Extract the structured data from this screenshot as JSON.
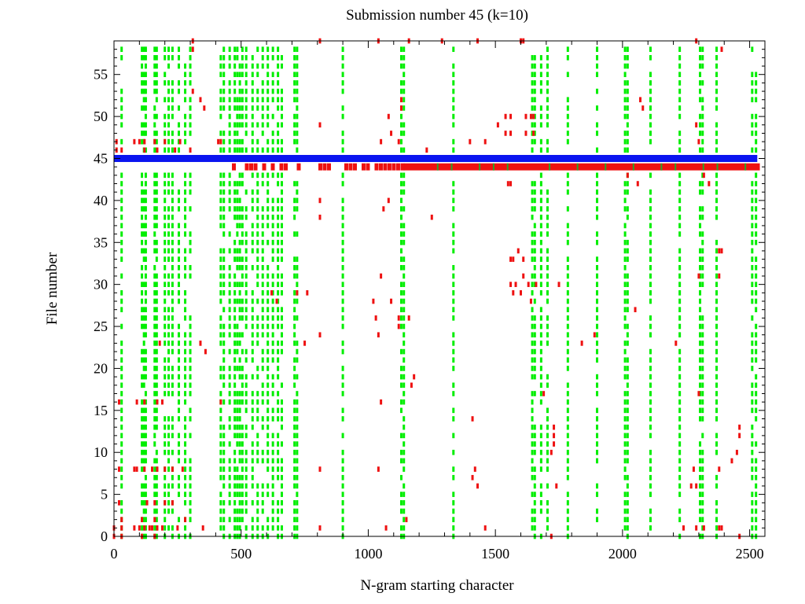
{
  "chart_data": {
    "type": "scatter",
    "title": "Submission number 45 (k=10)",
    "xlabel": "N-gram starting character",
    "ylabel": "File number",
    "xlim": [
      0,
      2560
    ],
    "ylim": [
      0,
      59
    ],
    "xticks": [
      0,
      500,
      1000,
      1500,
      2000,
      2500
    ],
    "xtick_labels": [
      "0",
      "500",
      "1000",
      "1500",
      "2000",
      "2500"
    ],
    "yticks": [
      0,
      5,
      10,
      15,
      20,
      25,
      30,
      35,
      40,
      45,
      50,
      55
    ],
    "ytick_labels": [
      "0",
      "5",
      "10",
      "15",
      "20",
      "25",
      "30",
      "35",
      "40",
      "45",
      "50",
      "55"
    ],
    "grid": false,
    "colors": {
      "green": "#00ee00",
      "red": "#ee1111",
      "blue": "#0a14f0",
      "axis": "#000000"
    },
    "submission_row": {
      "file": 45,
      "x_range": [
        0,
        2530
      ],
      "color": "blue"
    },
    "dense_red_row": {
      "file": 44,
      "x_range": [
        1140,
        2540
      ],
      "color": "red"
    },
    "green_column_x": [
      30,
      110,
      118,
      125,
      160,
      168,
      200,
      215,
      230,
      255,
      280,
      300,
      420,
      432,
      455,
      475,
      485,
      495,
      505,
      520,
      545,
      565,
      585,
      605,
      625,
      645,
      660,
      710,
      720,
      900,
      1130,
      1140,
      1335,
      1645,
      1655,
      1680,
      1705,
      1785,
      1900,
      2010,
      2020,
      2110,
      2225,
      2305,
      2315,
      2370,
      2510,
      2525
    ],
    "red_points": [
      {
        "x": 310,
        "file": 59
      },
      {
        "x": 810,
        "file": 59
      },
      {
        "x": 1040,
        "file": 59
      },
      {
        "x": 1160,
        "file": 59
      },
      {
        "x": 1290,
        "file": 59
      },
      {
        "x": 1430,
        "file": 59
      },
      {
        "x": 1600,
        "file": 59
      },
      {
        "x": 1610,
        "file": 59
      },
      {
        "x": 2290,
        "file": 59
      },
      {
        "x": 310,
        "file": 58
      },
      {
        "x": 2390,
        "file": 58
      },
      {
        "x": 1130,
        "file": 52
      },
      {
        "x": 1130,
        "file": 51
      },
      {
        "x": 2070,
        "file": 52
      },
      {
        "x": 2080,
        "file": 51
      },
      {
        "x": 310,
        "file": 53
      },
      {
        "x": 340,
        "file": 52
      },
      {
        "x": 355,
        "file": 51
      },
      {
        "x": 1080,
        "file": 50
      },
      {
        "x": 1540,
        "file": 50
      },
      {
        "x": 1560,
        "file": 50
      },
      {
        "x": 1620,
        "file": 50
      },
      {
        "x": 1640,
        "file": 50
      },
      {
        "x": 1650,
        "file": 50
      },
      {
        "x": 1510,
        "file": 49
      },
      {
        "x": 810,
        "file": 49
      },
      {
        "x": 2290,
        "file": 49
      },
      {
        "x": 1090,
        "file": 48
      },
      {
        "x": 1540,
        "file": 48
      },
      {
        "x": 1560,
        "file": 48
      },
      {
        "x": 1620,
        "file": 48
      },
      {
        "x": 1650,
        "file": 48
      },
      {
        "x": 10,
        "file": 47
      },
      {
        "x": 80,
        "file": 47
      },
      {
        "x": 100,
        "file": 47
      },
      {
        "x": 120,
        "file": 47
      },
      {
        "x": 160,
        "file": 47
      },
      {
        "x": 200,
        "file": 47
      },
      {
        "x": 260,
        "file": 47
      },
      {
        "x": 410,
        "file": 47
      },
      {
        "x": 420,
        "file": 47
      },
      {
        "x": 1050,
        "file": 47
      },
      {
        "x": 1120,
        "file": 47
      },
      {
        "x": 1400,
        "file": 47
      },
      {
        "x": 1460,
        "file": 47
      },
      {
        "x": 2300,
        "file": 47
      },
      {
        "x": 10,
        "file": 46
      },
      {
        "x": 30,
        "file": 46
      },
      {
        "x": 120,
        "file": 46
      },
      {
        "x": 170,
        "file": 46
      },
      {
        "x": 240,
        "file": 46
      },
      {
        "x": 300,
        "file": 46
      },
      {
        "x": 1230,
        "file": 46
      },
      {
        "x": 2020,
        "file": 43
      },
      {
        "x": 2060,
        "file": 42
      },
      {
        "x": 2320,
        "file": 43
      },
      {
        "x": 2340,
        "file": 42
      },
      {
        "x": 1550,
        "file": 42
      },
      {
        "x": 1560,
        "file": 42
      },
      {
        "x": 1080,
        "file": 40
      },
      {
        "x": 810,
        "file": 40
      },
      {
        "x": 810,
        "file": 38
      },
      {
        "x": 1060,
        "file": 39
      },
      {
        "x": 1250,
        "file": 38
      },
      {
        "x": 1590,
        "file": 34
      },
      {
        "x": 1560,
        "file": 33
      },
      {
        "x": 1570,
        "file": 33
      },
      {
        "x": 1610,
        "file": 33
      },
      {
        "x": 1610,
        "file": 31
      },
      {
        "x": 1560,
        "file": 30
      },
      {
        "x": 1580,
        "file": 30
      },
      {
        "x": 1630,
        "file": 30
      },
      {
        "x": 1660,
        "file": 30
      },
      {
        "x": 1750,
        "file": 30
      },
      {
        "x": 1050,
        "file": 31
      },
      {
        "x": 2300,
        "file": 31
      },
      {
        "x": 2380,
        "file": 31
      },
      {
        "x": 2380,
        "file": 34
      },
      {
        "x": 2390,
        "file": 34
      },
      {
        "x": 1570,
        "file": 29
      },
      {
        "x": 1600,
        "file": 29
      },
      {
        "x": 1640,
        "file": 28
      },
      {
        "x": 620,
        "file": 29
      },
      {
        "x": 640,
        "file": 28
      },
      {
        "x": 720,
        "file": 29
      },
      {
        "x": 760,
        "file": 29
      },
      {
        "x": 1020,
        "file": 28
      },
      {
        "x": 1090,
        "file": 28
      },
      {
        "x": 1120,
        "file": 26
      },
      {
        "x": 1030,
        "file": 26
      },
      {
        "x": 1040,
        "file": 24
      },
      {
        "x": 1120,
        "file": 25
      },
      {
        "x": 1160,
        "file": 26
      },
      {
        "x": 2050,
        "file": 27
      },
      {
        "x": 750,
        "file": 23
      },
      {
        "x": 810,
        "file": 24
      },
      {
        "x": 1840,
        "file": 23
      },
      {
        "x": 1890,
        "file": 24
      },
      {
        "x": 2210,
        "file": 23
      },
      {
        "x": 180,
        "file": 23
      },
      {
        "x": 340,
        "file": 23
      },
      {
        "x": 360,
        "file": 22
      },
      {
        "x": 1180,
        "file": 19
      },
      {
        "x": 1170,
        "file": 18
      },
      {
        "x": 1690,
        "file": 17
      },
      {
        "x": 2300,
        "file": 17
      },
      {
        "x": 20,
        "file": 16
      },
      {
        "x": 90,
        "file": 16
      },
      {
        "x": 120,
        "file": 16
      },
      {
        "x": 170,
        "file": 16
      },
      {
        "x": 190,
        "file": 16
      },
      {
        "x": 420,
        "file": 16
      },
      {
        "x": 1050,
        "file": 16
      },
      {
        "x": 1410,
        "file": 14
      },
      {
        "x": 1730,
        "file": 13
      },
      {
        "x": 1730,
        "file": 12
      },
      {
        "x": 1730,
        "file": 11
      },
      {
        "x": 2460,
        "file": 13
      },
      {
        "x": 2460,
        "file": 12
      },
      {
        "x": 2450,
        "file": 10
      },
      {
        "x": 1720,
        "file": 10
      },
      {
        "x": 2430,
        "file": 9
      },
      {
        "x": 2280,
        "file": 8
      },
      {
        "x": 2380,
        "file": 8
      },
      {
        "x": 20,
        "file": 8
      },
      {
        "x": 80,
        "file": 8
      },
      {
        "x": 90,
        "file": 8
      },
      {
        "x": 120,
        "file": 8
      },
      {
        "x": 150,
        "file": 8
      },
      {
        "x": 170,
        "file": 8
      },
      {
        "x": 200,
        "file": 8
      },
      {
        "x": 230,
        "file": 8
      },
      {
        "x": 270,
        "file": 8
      },
      {
        "x": 1040,
        "file": 8
      },
      {
        "x": 810,
        "file": 8
      },
      {
        "x": 1420,
        "file": 8
      },
      {
        "x": 1410,
        "file": 7
      },
      {
        "x": 2270,
        "file": 6
      },
      {
        "x": 2290,
        "file": 6
      },
      {
        "x": 1430,
        "file": 6
      },
      {
        "x": 1740,
        "file": 6
      },
      {
        "x": 20,
        "file": 4
      },
      {
        "x": 130,
        "file": 4
      },
      {
        "x": 160,
        "file": 4
      },
      {
        "x": 200,
        "file": 4
      },
      {
        "x": 230,
        "file": 4
      },
      {
        "x": 30,
        "file": 2
      },
      {
        "x": 110,
        "file": 2
      },
      {
        "x": 160,
        "file": 2
      },
      {
        "x": 280,
        "file": 2
      },
      {
        "x": 1150,
        "file": 2
      },
      {
        "x": 0,
        "file": 1
      },
      {
        "x": 30,
        "file": 1
      },
      {
        "x": 80,
        "file": 1
      },
      {
        "x": 100,
        "file": 1
      },
      {
        "x": 120,
        "file": 1
      },
      {
        "x": 140,
        "file": 1
      },
      {
        "x": 150,
        "file": 1
      },
      {
        "x": 170,
        "file": 1
      },
      {
        "x": 190,
        "file": 1
      },
      {
        "x": 250,
        "file": 1
      },
      {
        "x": 350,
        "file": 1
      },
      {
        "x": 810,
        "file": 1
      },
      {
        "x": 1070,
        "file": 1
      },
      {
        "x": 1460,
        "file": 1
      },
      {
        "x": 2240,
        "file": 1
      },
      {
        "x": 2290,
        "file": 1
      },
      {
        "x": 2320,
        "file": 1
      },
      {
        "x": 2380,
        "file": 1
      },
      {
        "x": 2390,
        "file": 1
      },
      {
        "x": 0,
        "file": 0
      },
      {
        "x": 30,
        "file": 0
      },
      {
        "x": 110,
        "file": 0
      },
      {
        "x": 160,
        "file": 0
      },
      {
        "x": 1720,
        "file": 0
      },
      {
        "x": 2460,
        "file": 0
      }
    ]
  }
}
